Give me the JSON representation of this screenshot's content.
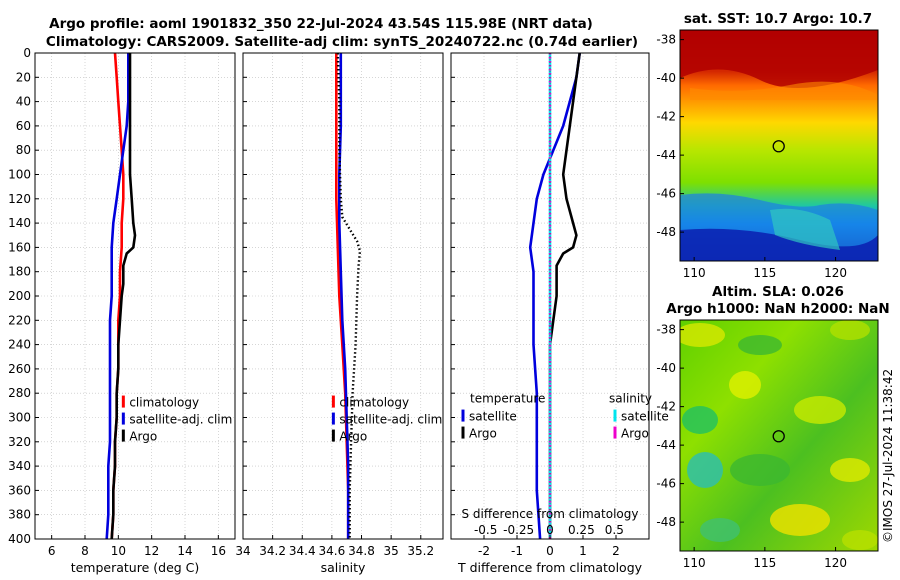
{
  "figure": {
    "title_line1": "Argo profile: aoml 1901832_350 22-Jul-2024 43.54S 115.98E (NRT data)",
    "title_line2": "Climatology: CARS2009. Satellite-adj clim: synTS_20240722.nc (0.74d earlier)",
    "credit": "©IMOS 27-Jul-2024 11:38:42"
  },
  "colors": {
    "climatology": "#ff0000",
    "satellite": "#0000dd",
    "argo": "#000000",
    "salinity_satellite": "#00e5ee",
    "salinity_argo": "#ee00cc",
    "grid": "#bdbdbd"
  },
  "chart_data": [
    {
      "type": "line",
      "name": "temperature-profile",
      "xlabel": "temperature (deg C)",
      "xlim": [
        5,
        17
      ],
      "xticks": [
        6,
        8,
        10,
        12,
        14,
        16
      ],
      "ylim": [
        0,
        400
      ],
      "yticks": [
        0,
        20,
        40,
        60,
        80,
        100,
        120,
        140,
        160,
        180,
        200,
        220,
        240,
        260,
        280,
        300,
        320,
        340,
        360,
        380,
        400
      ],
      "y_reversed": true,
      "legend": [
        "climatology",
        "satellite-adj. clim",
        "Argo"
      ],
      "series": [
        {
          "name": "climatology",
          "style": "solid",
          "points": [
            [
              9.8,
              0
            ],
            [
              9.9,
              20
            ],
            [
              10.0,
              40
            ],
            [
              10.1,
              60
            ],
            [
              10.2,
              80
            ],
            [
              10.3,
              100
            ],
            [
              10.3,
              120
            ],
            [
              10.2,
              140
            ],
            [
              10.2,
              160
            ],
            [
              10.1,
              180
            ],
            [
              10.1,
              200
            ],
            [
              10.0,
              220
            ],
            [
              10.0,
              240
            ],
            [
              10.0,
              260
            ],
            [
              9.9,
              280
            ],
            [
              9.9,
              300
            ],
            [
              9.8,
              320
            ],
            [
              9.8,
              340
            ],
            [
              9.7,
              360
            ],
            [
              9.7,
              380
            ],
            [
              9.6,
              400
            ]
          ]
        },
        {
          "name": "satellite-adj. clim",
          "style": "solid",
          "points": [
            [
              10.6,
              0
            ],
            [
              10.6,
              20
            ],
            [
              10.6,
              40
            ],
            [
              10.5,
              60
            ],
            [
              10.3,
              80
            ],
            [
              10.1,
              100
            ],
            [
              9.9,
              120
            ],
            [
              9.7,
              140
            ],
            [
              9.6,
              160
            ],
            [
              9.6,
              180
            ],
            [
              9.6,
              200
            ],
            [
              9.5,
              220
            ],
            [
              9.5,
              240
            ],
            [
              9.5,
              260
            ],
            [
              9.5,
              280
            ],
            [
              9.5,
              300
            ],
            [
              9.5,
              320
            ],
            [
              9.4,
              340
            ],
            [
              9.4,
              360
            ],
            [
              9.4,
              380
            ],
            [
              9.3,
              400
            ]
          ]
        },
        {
          "name": "Argo",
          "style": "solid",
          "points": [
            [
              10.7,
              0
            ],
            [
              10.7,
              20
            ],
            [
              10.7,
              40
            ],
            [
              10.7,
              60
            ],
            [
              10.7,
              80
            ],
            [
              10.7,
              100
            ],
            [
              10.8,
              120
            ],
            [
              10.9,
              140
            ],
            [
              11.0,
              150
            ],
            [
              10.9,
              160
            ],
            [
              10.5,
              165
            ],
            [
              10.3,
              175
            ],
            [
              10.3,
              190
            ],
            [
              10.2,
              200
            ],
            [
              10.1,
              220
            ],
            [
              10.0,
              240
            ],
            [
              10.0,
              260
            ],
            [
              9.9,
              280
            ],
            [
              9.9,
              300
            ],
            [
              9.8,
              320
            ],
            [
              9.8,
              340
            ],
            [
              9.7,
              360
            ],
            [
              9.7,
              380
            ],
            [
              9.6,
              400
            ]
          ]
        }
      ]
    },
    {
      "type": "line",
      "name": "salinity-profile",
      "xlabel": "salinity",
      "xlim": [
        34,
        35.35
      ],
      "xticks": [
        34,
        34.2,
        34.4,
        34.6,
        34.8,
        35,
        35.2
      ],
      "ylim": [
        0,
        400
      ],
      "y_reversed": true,
      "legend": [
        "climatology",
        "satellite-adj. clim",
        "Argo"
      ],
      "series": [
        {
          "name": "climatology",
          "style": "solid",
          "points": [
            [
              34.63,
              0
            ],
            [
              34.63,
              40
            ],
            [
              34.63,
              80
            ],
            [
              34.63,
              120
            ],
            [
              34.64,
              160
            ],
            [
              34.65,
              200
            ],
            [
              34.67,
              240
            ],
            [
              34.69,
              280
            ],
            [
              34.7,
              320
            ],
            [
              34.71,
              360
            ],
            [
              34.71,
              400
            ]
          ]
        },
        {
          "name": "satellite-adj. clim",
          "style": "solid",
          "points": [
            [
              34.66,
              0
            ],
            [
              34.66,
              20
            ],
            [
              34.66,
              60
            ],
            [
              34.65,
              100
            ],
            [
              34.65,
              140
            ],
            [
              34.66,
              180
            ],
            [
              34.67,
              220
            ],
            [
              34.69,
              260
            ],
            [
              34.7,
              300
            ],
            [
              34.71,
              340
            ],
            [
              34.71,
              380
            ],
            [
              34.71,
              400
            ]
          ]
        },
        {
          "name": "Argo",
          "style": "dotted",
          "points": [
            [
              34.64,
              0
            ],
            [
              34.65,
              40
            ],
            [
              34.65,
              80
            ],
            [
              34.66,
              120
            ],
            [
              34.67,
              135
            ],
            [
              34.72,
              145
            ],
            [
              34.77,
              155
            ],
            [
              34.79,
              163
            ],
            [
              34.78,
              175
            ],
            [
              34.77,
              200
            ],
            [
              34.76,
              240
            ],
            [
              34.74,
              280
            ],
            [
              34.73,
              320
            ],
            [
              34.72,
              360
            ],
            [
              34.72,
              400
            ]
          ]
        }
      ]
    },
    {
      "type": "line",
      "name": "difference-profile",
      "xlabel": "T difference from climatology",
      "xlim": [
        -3,
        3
      ],
      "xticks": [
        -2,
        -1,
        0,
        1,
        2
      ],
      "xlabel_top": "S difference from climatology",
      "xticks_top": [
        "-0.5",
        "-0.25",
        "0",
        "0.25",
        "0.5"
      ],
      "ylim": [
        0,
        400
      ],
      "y_reversed": true,
      "legend_titles": [
        "temperature",
        "salinity"
      ],
      "legend": [
        "satellite",
        "Argo",
        "satellite",
        "Argo"
      ],
      "series": [
        {
          "name": "temperature satellite",
          "style": "solid",
          "points": [
            [
              0.9,
              0
            ],
            [
              0.8,
              20
            ],
            [
              0.6,
              40
            ],
            [
              0.4,
              60
            ],
            [
              0.1,
              80
            ],
            [
              -0.2,
              100
            ],
            [
              -0.4,
              120
            ],
            [
              -0.5,
              140
            ],
            [
              -0.6,
              160
            ],
            [
              -0.5,
              180
            ],
            [
              -0.5,
              200
            ],
            [
              -0.5,
              240
            ],
            [
              -0.4,
              280
            ],
            [
              -0.4,
              320
            ],
            [
              -0.4,
              360
            ],
            [
              -0.3,
              400
            ]
          ]
        },
        {
          "name": "temperature Argo",
          "style": "solid",
          "points": [
            [
              0.9,
              0
            ],
            [
              0.8,
              20
            ],
            [
              0.7,
              40
            ],
            [
              0.6,
              60
            ],
            [
              0.5,
              80
            ],
            [
              0.4,
              100
            ],
            [
              0.5,
              120
            ],
            [
              0.7,
              140
            ],
            [
              0.8,
              150
            ],
            [
              0.7,
              160
            ],
            [
              0.4,
              165
            ],
            [
              0.2,
              175
            ],
            [
              0.2,
              190
            ],
            [
              0.2,
              200
            ],
            [
              0.1,
              220
            ],
            [
              0.0,
              240
            ],
            [
              0.0,
              260
            ],
            [
              0.0,
              280
            ],
            [
              0.0,
              320
            ],
            [
              0.0,
              360
            ],
            [
              0.0,
              400
            ]
          ]
        },
        {
          "name": "salinity satellite",
          "style": "solid",
          "points": [
            [
              0.0,
              0
            ],
            [
              0.0,
              40
            ],
            [
              0.0,
              80
            ],
            [
              0.0,
              120
            ],
            [
              0.0,
              160
            ],
            [
              0.0,
              200
            ],
            [
              0.0,
              240
            ],
            [
              0.0,
              280
            ],
            [
              0.0,
              320
            ],
            [
              0.0,
              360
            ],
            [
              0.0,
              400
            ]
          ]
        },
        {
          "name": "salinity Argo",
          "style": "dotted",
          "points": [
            [
              0.0,
              0
            ],
            [
              0.0,
              40
            ],
            [
              0.0,
              80
            ],
            [
              0.0,
              120
            ],
            [
              0.0,
              160
            ],
            [
              0.0,
              200
            ],
            [
              0.0,
              240
            ],
            [
              0.0,
              280
            ],
            [
              0.0,
              320
            ],
            [
              0.0,
              360
            ],
            [
              0.0,
              400
            ]
          ]
        }
      ]
    },
    {
      "type": "heatmap",
      "name": "sst-map",
      "title": "sat. SST: 10.7 Argo: 10.7",
      "xlim": [
        109,
        123
      ],
      "xticks": [
        110,
        115,
        120
      ],
      "ylim": [
        -49.5,
        -37.5
      ],
      "yticks": [
        -38,
        -40,
        -42,
        -44,
        -46,
        -48
      ],
      "marker": [
        115.98,
        -43.54
      ]
    },
    {
      "type": "heatmap",
      "name": "sla-map",
      "title_line1": "Altim. SLA: 0.026",
      "title_line2": "Argo h1000: NaN h2000: NaN",
      "xlim": [
        109,
        123
      ],
      "xticks": [
        110,
        115,
        120
      ],
      "ylim": [
        -49.5,
        -37.5
      ],
      "yticks": [
        -38,
        -40,
        -42,
        -44,
        -46,
        -48
      ],
      "marker": [
        115.98,
        -43.54
      ]
    }
  ]
}
